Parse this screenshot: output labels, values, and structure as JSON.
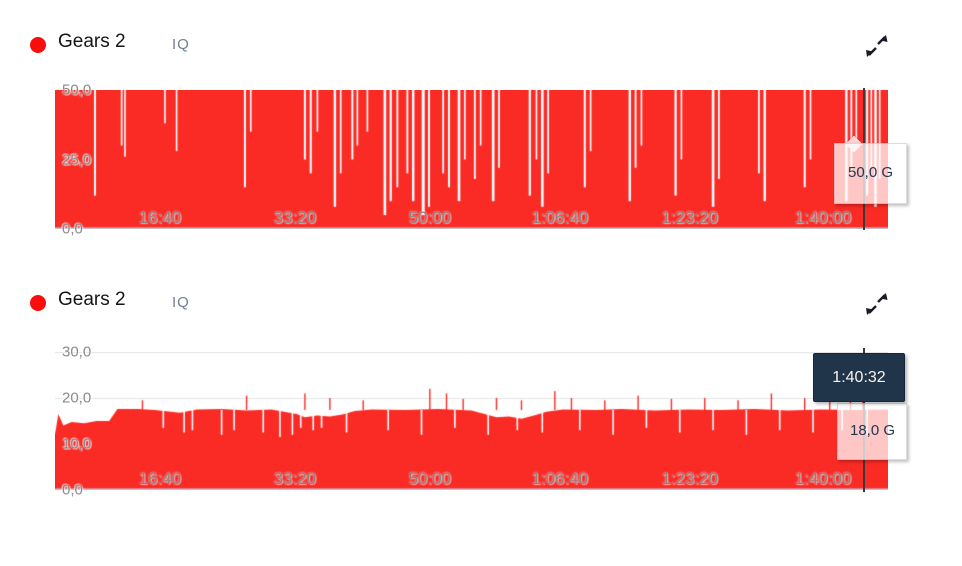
{
  "colors": {
    "series_red": "#fa2a25",
    "legend_dot_red": "#fb0d0d",
    "tooltip_dark_bg": "#20344a",
    "tooltip_text_navy": "#22384f",
    "grid": "#e4e4e4",
    "axis_line": "#bfc8dd",
    "tick_text": "#8b8b8b"
  },
  "panels": [
    {
      "title": "Gears 2",
      "subtitle": "IQ",
      "expand_icon": "expand-diagonal-arrows-icon",
      "tooltip_value": "50,0 G"
    },
    {
      "title": "Gears 2",
      "subtitle": "IQ",
      "expand_icon": "expand-diagonal-arrows-icon",
      "tooltip_time": "1:40:32",
      "tooltip_value": "18,0 G"
    }
  ],
  "chart_data": [
    {
      "type": "area",
      "title": "Gears 2",
      "series_label": "IQ",
      "color": "#fa2a25",
      "grid_color": "#e4e4e4",
      "axis_line_color": "#bfc8dd",
      "ylim": [
        0,
        50
      ],
      "yticks": [
        {
          "label": "50,0",
          "f": 0
        },
        {
          "label": "25,0",
          "f": 0.5
        },
        {
          "label": "0,0",
          "f": 1
        }
      ],
      "xticks": [
        {
          "label": "16:40",
          "f": 0.126
        },
        {
          "label": "33:20",
          "f": 0.288
        },
        {
          "label": "50:00",
          "f": 0.45
        },
        {
          "label": "1:06:40",
          "f": 0.606
        },
        {
          "label": "1:23:20",
          "f": 0.762
        },
        {
          "label": "1:40:00",
          "f": 0.922
        }
      ],
      "baseline": 50,
      "cursor_f": 0.97,
      "tooltip": {
        "value": "50,0 G"
      },
      "dips": [
        [
          0.048,
          12,
          2
        ],
        [
          0.08,
          30,
          1.6
        ],
        [
          0.084,
          26,
          1.6
        ],
        [
          0.132,
          38,
          1.6
        ],
        [
          0.146,
          28,
          1.6
        ],
        [
          0.228,
          15,
          2
        ],
        [
          0.235,
          35,
          1.6
        ],
        [
          0.3,
          25,
          2
        ],
        [
          0.307,
          20,
          2
        ],
        [
          0.315,
          35,
          1.6
        ],
        [
          0.336,
          8,
          2.4
        ],
        [
          0.343,
          20,
          1.6
        ],
        [
          0.357,
          25,
          2
        ],
        [
          0.363,
          30,
          1.6
        ],
        [
          0.375,
          35,
          1.6
        ],
        [
          0.396,
          5,
          2.6
        ],
        [
          0.403,
          10,
          2.2
        ],
        [
          0.411,
          15,
          1.8
        ],
        [
          0.423,
          20,
          1.8
        ],
        [
          0.43,
          10,
          2.4
        ],
        [
          0.442,
          5,
          3
        ],
        [
          0.449,
          8,
          2
        ],
        [
          0.466,
          20,
          1.8
        ],
        [
          0.473,
          15,
          2
        ],
        [
          0.485,
          10,
          2.6
        ],
        [
          0.492,
          25,
          1.6
        ],
        [
          0.504,
          18,
          1.8
        ],
        [
          0.511,
          30,
          1.6
        ],
        [
          0.526,
          10,
          2.6
        ],
        [
          0.533,
          22,
          1.8
        ],
        [
          0.57,
          12,
          2.2
        ],
        [
          0.578,
          25,
          1.6
        ],
        [
          0.585,
          8,
          2.6
        ],
        [
          0.592,
          20,
          1.8
        ],
        [
          0.636,
          15,
          2
        ],
        [
          0.643,
          28,
          1.6
        ],
        [
          0.69,
          10,
          2.4
        ],
        [
          0.697,
          22,
          1.8
        ],
        [
          0.704,
          30,
          1.6
        ],
        [
          0.745,
          12,
          2.2
        ],
        [
          0.752,
          25,
          1.6
        ],
        [
          0.79,
          8,
          2.6
        ],
        [
          0.797,
          18,
          1.8
        ],
        [
          0.845,
          20,
          1.8
        ],
        [
          0.852,
          10,
          2.4
        ],
        [
          0.9,
          15,
          2
        ],
        [
          0.907,
          25,
          1.6
        ],
        [
          0.95,
          10,
          2.4
        ],
        [
          0.956,
          20,
          1.8
        ],
        [
          0.962,
          30,
          1.6
        ],
        [
          0.975,
          12,
          2
        ],
        [
          0.98,
          22,
          1.6
        ],
        [
          0.985,
          8,
          2.4
        ],
        [
          0.99,
          18,
          1.6
        ]
      ]
    },
    {
      "type": "area",
      "title": "Gears 2",
      "series_label": "IQ",
      "color": "#fa2a25",
      "grid_color": "#e4e4e4",
      "axis_line_color": "#bfc8dd",
      "ylim": [
        0,
        30
      ],
      "yticks": [
        {
          "label": "30,0",
          "f": 0
        },
        {
          "label": "20,0",
          "f": 0.3333
        },
        {
          "label": "10,0",
          "f": 0.6667
        },
        {
          "label": "0,0",
          "f": 1
        }
      ],
      "xticks": [
        {
          "label": "16:40",
          "f": 0.126
        },
        {
          "label": "33:20",
          "f": 0.288
        },
        {
          "label": "50:00",
          "f": 0.45
        },
        {
          "label": "1:06:40",
          "f": 0.606
        },
        {
          "label": "1:23:20",
          "f": 0.762
        },
        {
          "label": "1:40:00",
          "f": 0.922
        }
      ],
      "cursor_f": 0.97,
      "tooltip": {
        "time": "1:40:32",
        "value": "18,0 G"
      },
      "spike_base": 17.4,
      "points": [
        [
          0,
          12
        ],
        [
          0.004,
          16.5
        ],
        [
          0.01,
          14
        ],
        [
          0.02,
          14.8
        ],
        [
          0.035,
          14.5
        ],
        [
          0.05,
          15
        ],
        [
          0.065,
          15
        ],
        [
          0.075,
          17.6
        ],
        [
          0.1,
          17.6
        ],
        [
          0.12,
          17.4
        ],
        [
          0.15,
          16.8
        ],
        [
          0.17,
          17.5
        ],
        [
          0.2,
          17.6
        ],
        [
          0.23,
          17.3
        ],
        [
          0.26,
          17.5
        ],
        [
          0.29,
          16.5
        ],
        [
          0.3,
          15.8
        ],
        [
          0.315,
          16.2
        ],
        [
          0.33,
          16.0
        ],
        [
          0.345,
          16.4
        ],
        [
          0.36,
          17.2
        ],
        [
          0.38,
          17.5
        ],
        [
          0.42,
          17.4
        ],
        [
          0.46,
          17.6
        ],
        [
          0.5,
          17.3
        ],
        [
          0.53,
          15.8
        ],
        [
          0.545,
          16.0
        ],
        [
          0.56,
          15.5
        ],
        [
          0.575,
          16.2
        ],
        [
          0.59,
          17.0
        ],
        [
          0.61,
          17.5
        ],
        [
          0.65,
          17.4
        ],
        [
          0.68,
          17.6
        ],
        [
          0.72,
          17.3
        ],
        [
          0.76,
          17.5
        ],
        [
          0.8,
          17.4
        ],
        [
          0.84,
          17.6
        ],
        [
          0.88,
          17.3
        ],
        [
          0.92,
          17.5
        ],
        [
          0.96,
          17.4
        ],
        [
          1.0,
          17.5
        ]
      ],
      "spikes": [
        [
          0.105,
          19.5
        ],
        [
          0.23,
          20.5
        ],
        [
          0.3,
          21
        ],
        [
          0.33,
          20
        ],
        [
          0.37,
          19.5
        ],
        [
          0.45,
          22
        ],
        [
          0.47,
          21
        ],
        [
          0.49,
          19.8
        ],
        [
          0.53,
          20
        ],
        [
          0.56,
          19.5
        ],
        [
          0.6,
          21.5
        ],
        [
          0.62,
          20
        ],
        [
          0.66,
          19.5
        ],
        [
          0.7,
          20.5
        ],
        [
          0.74,
          19.8
        ],
        [
          0.78,
          20
        ],
        [
          0.82,
          19.5
        ],
        [
          0.86,
          21
        ],
        [
          0.9,
          20
        ],
        [
          0.93,
          19.6
        ],
        [
          0.955,
          20.5
        ],
        [
          0.97,
          21.5
        ]
      ],
      "dips": [
        [
          0.13,
          13.5
        ],
        [
          0.155,
          12.5
        ],
        [
          0.165,
          13
        ],
        [
          0.2,
          12
        ],
        [
          0.215,
          13
        ],
        [
          0.25,
          12.5
        ],
        [
          0.27,
          11.5
        ],
        [
          0.285,
          12
        ],
        [
          0.295,
          13.5
        ],
        [
          0.31,
          13
        ],
        [
          0.32,
          13.5
        ],
        [
          0.35,
          12.5
        ],
        [
          0.4,
          13
        ],
        [
          0.44,
          12
        ],
        [
          0.48,
          13.5
        ],
        [
          0.52,
          12
        ],
        [
          0.555,
          13
        ],
        [
          0.585,
          12.5
        ],
        [
          0.63,
          13
        ],
        [
          0.67,
          12
        ],
        [
          0.71,
          13.5
        ],
        [
          0.75,
          12.5
        ],
        [
          0.79,
          13
        ],
        [
          0.83,
          12
        ],
        [
          0.87,
          13
        ],
        [
          0.91,
          12.5
        ],
        [
          0.945,
          13
        ],
        [
          0.975,
          12
        ]
      ]
    }
  ]
}
